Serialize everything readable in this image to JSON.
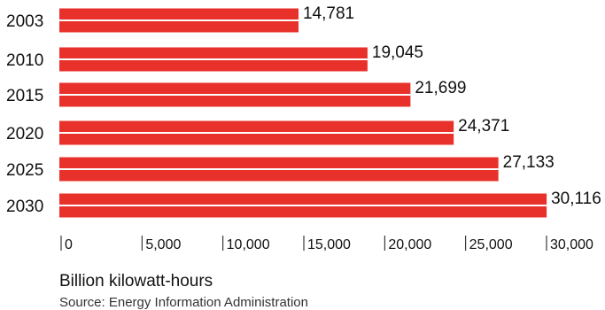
{
  "chart_data": {
    "type": "bar",
    "orientation": "horizontal",
    "categories": [
      "2003",
      "2010",
      "2015",
      "2020",
      "2025",
      "2030"
    ],
    "values": [
      14781,
      19045,
      21699,
      24371,
      27133,
      30116
    ],
    "value_labels": [
      "14,781",
      "19,045",
      "21,699",
      "24,371",
      "27,133",
      "30,116"
    ],
    "xlabel": "Billion kilowatt-hours",
    "ylabel": "",
    "title": "",
    "xlim": [
      0,
      30000
    ],
    "ticks": [
      0,
      5000,
      10000,
      15000,
      20000,
      25000,
      30000
    ],
    "tick_labels": [
      "0",
      "5,000",
      "10,000",
      "15,000",
      "20,000",
      "25,000",
      "30,000"
    ],
    "grid": false,
    "legend": "none",
    "bar_color": "#e8312a",
    "stripe_color": "#ffffff"
  },
  "source": "Source: Energy Information Administration"
}
